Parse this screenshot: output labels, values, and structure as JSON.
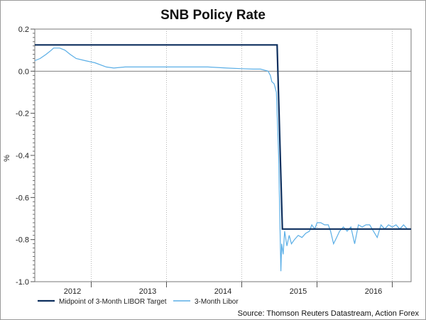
{
  "chart_data": {
    "type": "line",
    "title": "SNB Policy Rate",
    "xlabel": "",
    "ylabel": "%",
    "ylim": [
      -1.0,
      0.2
    ],
    "yticks": [
      "0.2",
      "0.0",
      "-0.2",
      "-0.4",
      "-0.6",
      "-0.8",
      "-1.0"
    ],
    "yticks_values": [
      0.2,
      0.0,
      -0.2,
      -0.4,
      -0.6,
      -0.8,
      -1.0
    ],
    "xlim": [
      2011.75,
      2016.75
    ],
    "year_labels": [
      "2012",
      "2013",
      "2014",
      "2015",
      "2016"
    ],
    "year_label_positions": [
      2012.25,
      2013.25,
      2014.25,
      2015.25,
      2016.25
    ],
    "year_boundaries": [
      2012.5,
      2013.5,
      2014.5,
      2015.5,
      2016.5
    ],
    "zero_line": 0,
    "source": "Source: Thomson Reuters Datastream, Action Forex",
    "series": [
      {
        "name": "Midpoint of 3-Month LIBOR Target",
        "color": "#0d2f5e",
        "x": [
          2011.75,
          2014.97,
          2015.04,
          2016.75
        ],
        "values": [
          0.125,
          0.125,
          -0.75,
          -0.75
        ]
      },
      {
        "name": "3-Month Libor",
        "color": "#5aaee6",
        "x": [
          2011.75,
          2011.82,
          2011.9,
          2011.97,
          2012.0,
          2012.08,
          2012.15,
          2012.22,
          2012.3,
          2012.42,
          2012.55,
          2012.7,
          2012.8,
          2012.95,
          2013.2,
          2013.5,
          2013.8,
          2014.05,
          2014.3,
          2014.5,
          2014.65,
          2014.75,
          2014.8,
          2014.85,
          2014.88,
          2014.9,
          2014.93,
          2014.96,
          2014.99,
          2015.01,
          2015.02,
          2015.03,
          2015.05,
          2015.07,
          2015.1,
          2015.13,
          2015.16,
          2015.2,
          2015.25,
          2015.3,
          2015.35,
          2015.4,
          2015.43,
          2015.47,
          2015.5,
          2015.55,
          2015.6,
          2015.65,
          2015.68,
          2015.72,
          2015.76,
          2015.8,
          2015.85,
          2015.9,
          2015.95,
          2016.0,
          2016.05,
          2016.1,
          2016.15,
          2016.2,
          2016.25,
          2016.3,
          2016.35,
          2016.4,
          2016.45,
          2016.5,
          2016.55,
          2016.6,
          2016.65,
          2016.7,
          2016.75
        ],
        "values": [
          0.05,
          0.06,
          0.08,
          0.1,
          0.11,
          0.11,
          0.1,
          0.08,
          0.06,
          0.05,
          0.04,
          0.02,
          0.015,
          0.02,
          0.02,
          0.02,
          0.02,
          0.02,
          0.015,
          0.012,
          0.01,
          0.01,
          0.005,
          0.0,
          -0.02,
          -0.05,
          -0.06,
          -0.1,
          -0.4,
          -0.78,
          -0.95,
          -0.82,
          -0.87,
          -0.76,
          -0.83,
          -0.78,
          -0.82,
          -0.8,
          -0.78,
          -0.79,
          -0.77,
          -0.76,
          -0.73,
          -0.75,
          -0.72,
          -0.72,
          -0.73,
          -0.73,
          -0.76,
          -0.82,
          -0.79,
          -0.76,
          -0.74,
          -0.76,
          -0.74,
          -0.82,
          -0.73,
          -0.74,
          -0.73,
          -0.73,
          -0.76,
          -0.79,
          -0.73,
          -0.75,
          -0.73,
          -0.74,
          -0.73,
          -0.75,
          -0.73,
          -0.75,
          -0.75
        ]
      }
    ]
  }
}
